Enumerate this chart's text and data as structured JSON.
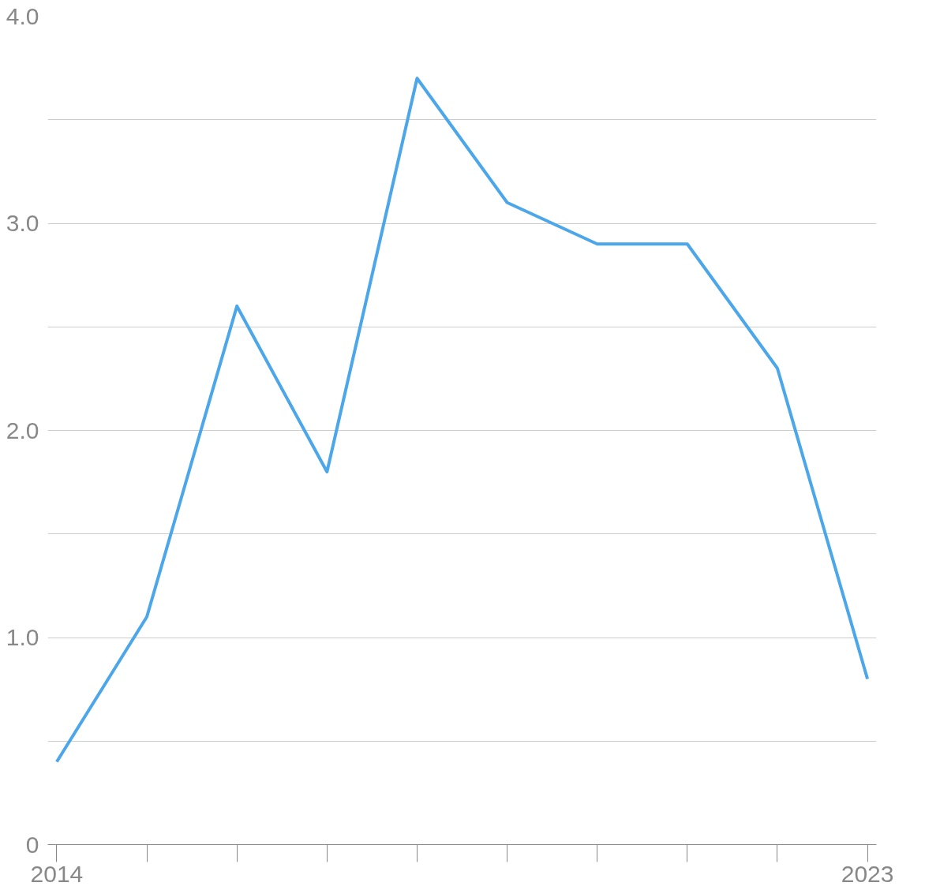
{
  "chart_data": {
    "type": "line",
    "x": [
      2014,
      2015,
      2016,
      2017,
      2018,
      2019,
      2020,
      2021,
      2022,
      2023
    ],
    "series": [
      {
        "color": "#4ba6ea",
        "values": [
          0.4,
          1.1,
          2.6,
          1.8,
          3.7,
          3.1,
          2.9,
          2.9,
          2.3,
          0.8
        ]
      }
    ],
    "xlim": [
      2013.9,
      2023.1
    ],
    "xticks": [
      2014,
      2023
    ],
    "ylim": [
      0,
      4
    ],
    "yticks": [
      {
        "value": 0,
        "label": "0"
      },
      {
        "value": 0.5,
        "label": null
      },
      {
        "value": 1,
        "label": "1.0"
      },
      {
        "value": 1.5,
        "label": null
      },
      {
        "value": 2,
        "label": "2.0"
      },
      {
        "value": 2.5,
        "label": null
      },
      {
        "value": 3,
        "label": "3.0"
      },
      {
        "value": 3.5,
        "label": null
      },
      {
        "value": 4,
        "label": "4.0"
      }
    ],
    "grid": "y",
    "marker": "none",
    "line_style": "solid"
  }
}
